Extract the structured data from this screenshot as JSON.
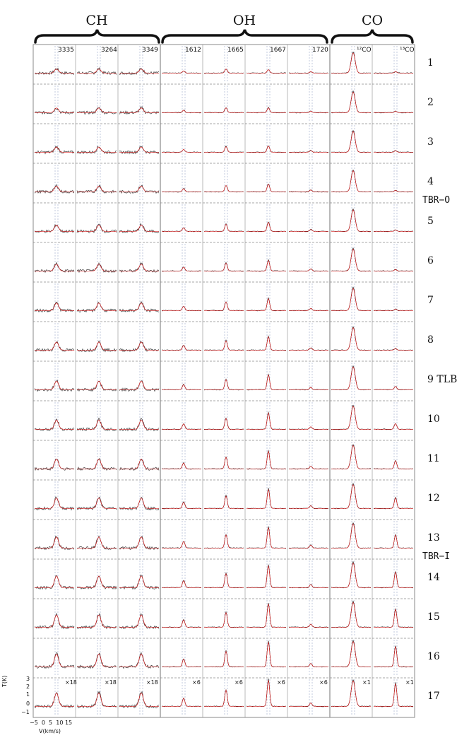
{
  "groups": [
    {
      "label": "CH"
    },
    {
      "label": "OH"
    },
    {
      "label": "CO"
    }
  ],
  "line_labels": [
    "3335",
    "3264",
    "3349",
    "1612",
    "1665",
    "1667",
    "1720",
    "¹²CO",
    "¹³CO"
  ],
  "scale_factors": [
    "×18",
    "×18",
    "×18",
    "×6",
    "×6",
    "×6",
    "×6",
    "×1",
    "×1"
  ],
  "rows": [
    "1",
    "2",
    "3",
    "4",
    "5",
    "6",
    "7",
    "8",
    "9 TLB",
    "10",
    "11",
    "12",
    "13",
    "14",
    "15",
    "16",
    "17"
  ],
  "regions": [
    {
      "label": "TBR−O",
      "after_row": 4
    },
    {
      "label": "TBR−I",
      "after_row": 13
    }
  ],
  "axes": {
    "ylabel": "T(K)",
    "yticks": [
      "3",
      "2",
      "1",
      "0",
      "−1"
    ],
    "xticks": "−5  0  5  10 15",
    "xlabel": "V(km/s)"
  },
  "colors": {
    "observed": "#222222",
    "fit": "#d62020",
    "grid": "#8a8a8a",
    "guide": "#9aa6c8"
  },
  "chart_data": {
    "type": "line",
    "title": "",
    "columns": [
      "3335",
      "3264",
      "3349",
      "1612",
      "1665",
      "1667",
      "1720",
      "¹²CO",
      "¹³CO"
    ],
    "rows": [
      "1",
      "2",
      "3",
      "4",
      "5",
      "6",
      "7",
      "8",
      "9",
      "10",
      "11",
      "12",
      "13",
      "14",
      "15",
      "16",
      "17"
    ],
    "ylim": [
      -1,
      3
    ],
    "xlim": [
      -5,
      15
    ],
    "series": [
      {
        "values": []
      },
      {
        "values": []
      }
    ]
  }
}
